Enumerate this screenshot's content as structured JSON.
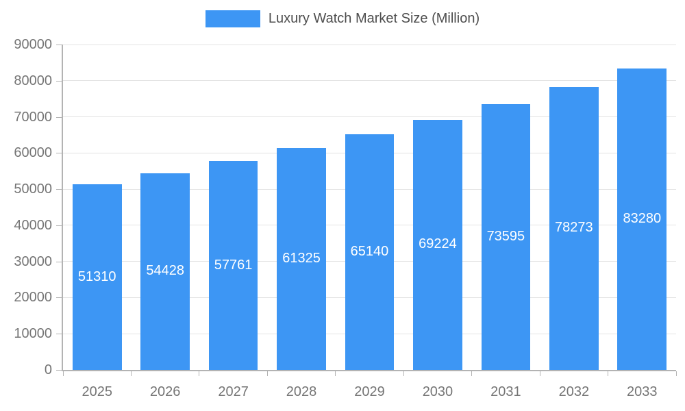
{
  "chart_data": {
    "type": "bar",
    "title": "Luxury Watch Market Size (Million)",
    "categories": [
      "2025",
      "2026",
      "2027",
      "2028",
      "2029",
      "2030",
      "2031",
      "2032",
      "2033"
    ],
    "values": [
      51310,
      54428,
      57761,
      61325,
      65140,
      69224,
      73595,
      78273,
      83280
    ],
    "xlabel": "",
    "ylabel": "",
    "ylim": [
      0,
      90000
    ],
    "ytick_step": 10000,
    "ytick_labels": [
      "0",
      "10000",
      "20000",
      "30000",
      "40000",
      "50000",
      "60000",
      "70000",
      "80000",
      "90000"
    ],
    "grid": true,
    "legend_position": "top-center",
    "value_label_position": "inside-center",
    "colors": {
      "bar": "#3d96f4",
      "bar_label": "#ffffff",
      "axis_text": "#757575",
      "legend_text": "#4d4d4d",
      "gridline": "#e3e3e3",
      "axis_line": "#b3b3b3",
      "background": "#ffffff"
    }
  }
}
